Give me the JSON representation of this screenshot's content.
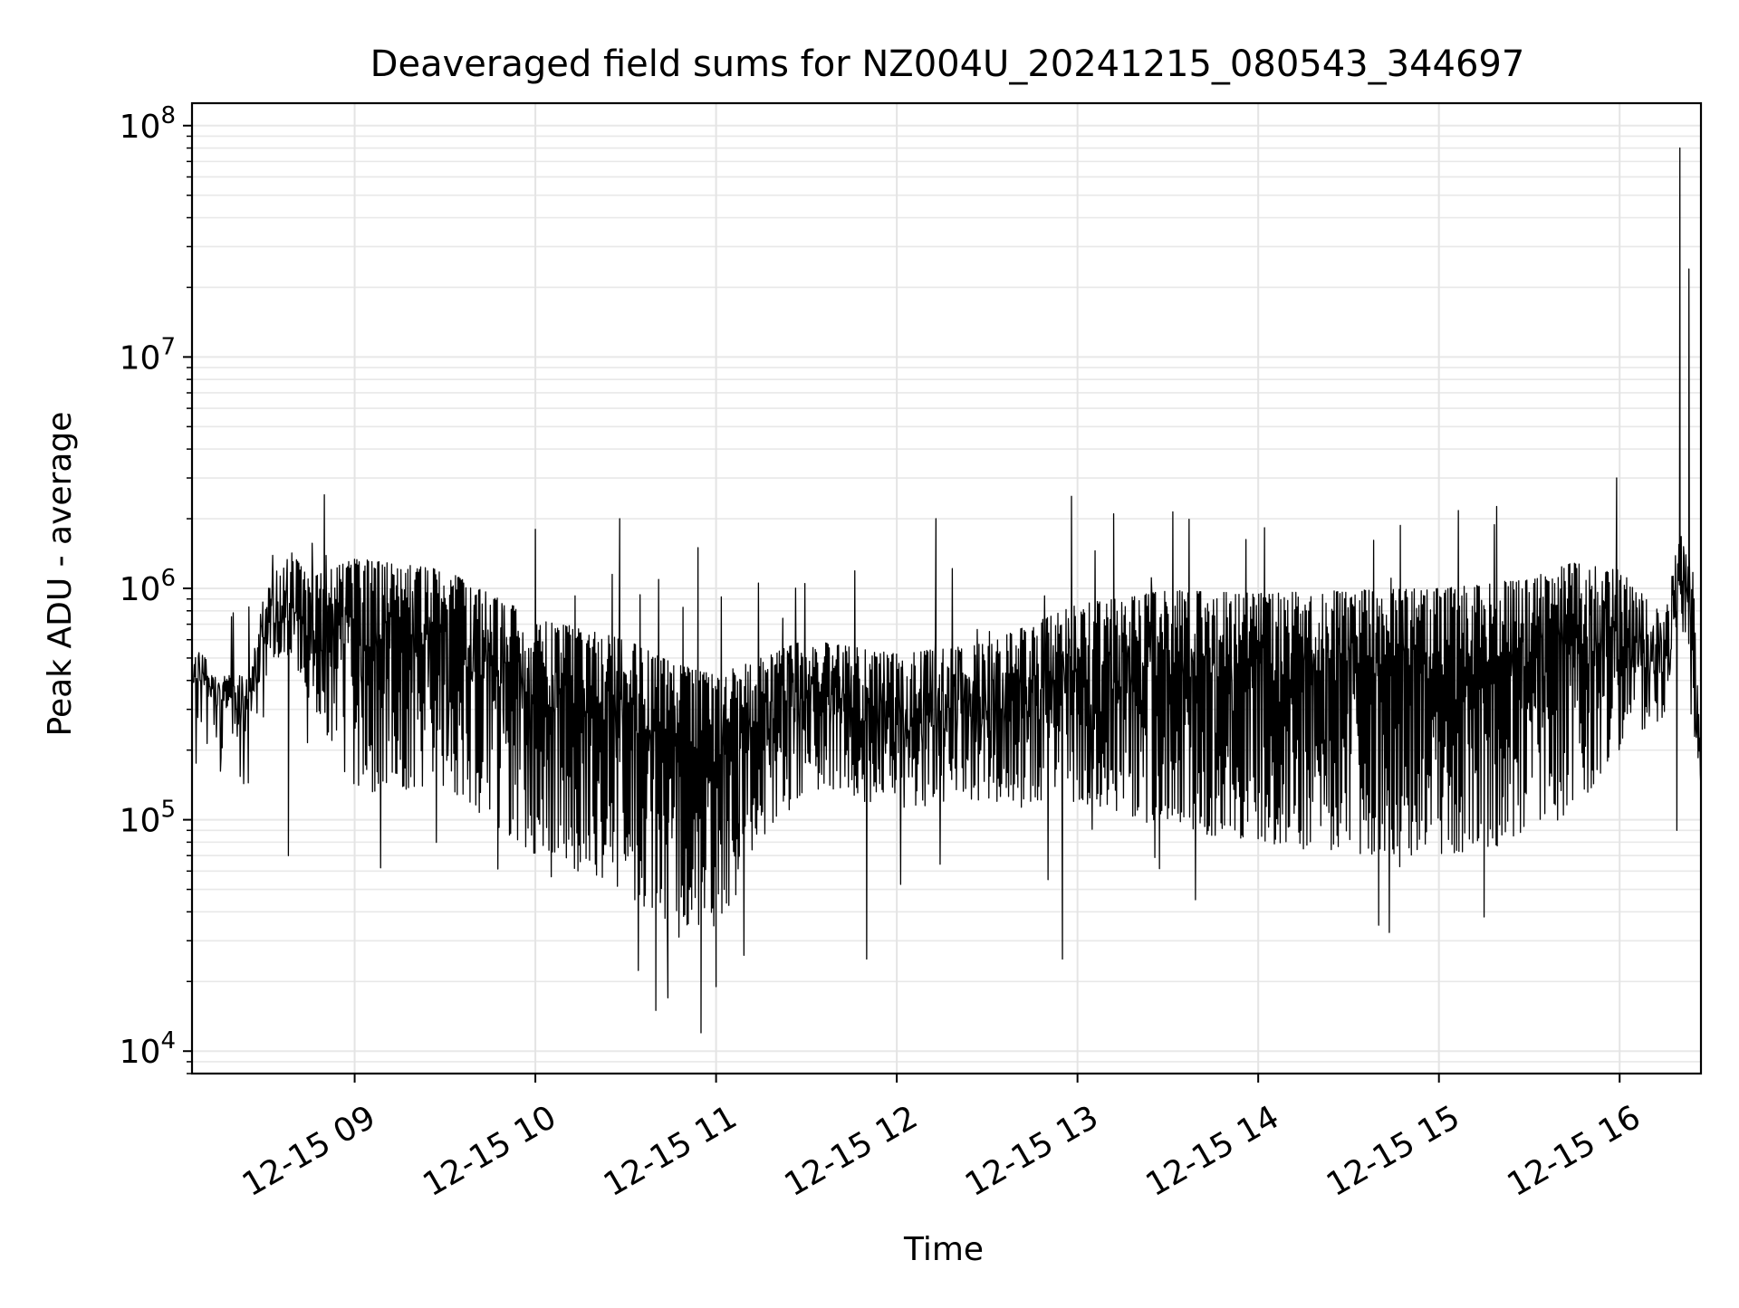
{
  "chart_data": {
    "type": "line",
    "title": "Deaveraged field sums for NZ004U_20241215_080543_344697",
    "xlabel": "Time",
    "ylabel": "Peak ADU - average",
    "y_scale": "log",
    "ylim": [
      8000,
      125000000
    ],
    "xlim": [
      "2024-12-15 08:06:00",
      "2024-12-15 16:27:00"
    ],
    "x_tick_labels": [
      "12-15 09",
      "12-15 10",
      "12-15 11",
      "12-15 12",
      "12-15 13",
      "12-15 14",
      "12-15 15",
      "12-15 16"
    ],
    "x_tick_values": [
      "2024-12-15 09:00",
      "2024-12-15 10:00",
      "2024-12-15 11:00",
      "2024-12-15 12:00",
      "2024-12-15 13:00",
      "2024-12-15 14:00",
      "2024-12-15 15:00",
      "2024-12-15 16:00"
    ],
    "y_tick_labels": [
      {
        "base": "10",
        "exp": "4",
        "value": 10000
      },
      {
        "base": "10",
        "exp": "5",
        "value": 100000
      },
      {
        "base": "10",
        "exp": "6",
        "value": 1000000
      },
      {
        "base": "10",
        "exp": "7",
        "value": 10000000
      },
      {
        "base": "10",
        "exp": "8",
        "value": 100000000
      }
    ],
    "grid": true,
    "line_color": "#000000",
    "series": [
      {
        "envelope": [
          {
            "t": "2024-12-15 08:06",
            "hi": 600000,
            "lo": 400000
          },
          {
            "t": "2024-12-15 08:15",
            "hi": 420000,
            "lo": 300000
          },
          {
            "t": "2024-12-15 08:25",
            "hi": 420000,
            "lo": 300000
          },
          {
            "t": "2024-12-15 08:30",
            "hi": 950000,
            "lo": 500000
          },
          {
            "t": "2024-12-15 08:38",
            "hi": 1500000,
            "lo": 500000
          },
          {
            "t": "2024-12-15 08:45",
            "hi": 1100000,
            "lo": 330000
          },
          {
            "t": "2024-12-15 09:00",
            "hi": 1350000,
            "lo": 130000
          },
          {
            "t": "2024-12-15 09:30",
            "hi": 1200000,
            "lo": 140000
          },
          {
            "t": "2024-12-15 10:00",
            "hi": 750000,
            "lo": 70000
          },
          {
            "t": "2024-12-15 10:30",
            "hi": 600000,
            "lo": 50000
          },
          {
            "t": "2024-12-15 10:45",
            "hi": 480000,
            "lo": 30000
          },
          {
            "t": "2024-12-15 11:00",
            "hi": 420000,
            "lo": 35000
          },
          {
            "t": "2024-12-15 11:30",
            "hi": 600000,
            "lo": 140000
          },
          {
            "t": "2024-12-15 12:00",
            "hi": 520000,
            "lo": 110000
          },
          {
            "t": "2024-12-15 12:30",
            "hi": 580000,
            "lo": 120000
          },
          {
            "t": "2024-12-15 13:00",
            "hi": 850000,
            "lo": 120000
          },
          {
            "t": "2024-12-15 13:30",
            "hi": 980000,
            "lo": 90000
          },
          {
            "t": "2024-12-15 14:00",
            "hi": 950000,
            "lo": 80000
          },
          {
            "t": "2024-12-15 14:30",
            "hi": 980000,
            "lo": 70000
          },
          {
            "t": "2024-12-15 15:00",
            "hi": 1000000,
            "lo": 70000
          },
          {
            "t": "2024-12-15 15:30",
            "hi": 1100000,
            "lo": 80000
          },
          {
            "t": "2024-12-15 15:45",
            "hi": 1300000,
            "lo": 110000
          },
          {
            "t": "2024-12-15 16:00",
            "hi": 1200000,
            "lo": 200000
          },
          {
            "t": "2024-12-15 16:15",
            "hi": 750000,
            "lo": 280000
          },
          {
            "t": "2024-12-15 16:20",
            "hi": 1800000,
            "lo": 900000
          },
          {
            "t": "2024-12-15 16:24",
            "hi": 1500000,
            "lo": 250000
          },
          {
            "t": "2024-12-15 16:27",
            "hi": 200000,
            "lo": 150000
          }
        ],
        "spikes": [
          {
            "t": "2024-12-15 10:00",
            "value": 1800000
          },
          {
            "t": "2024-12-15 10:28",
            "value": 2000000
          },
          {
            "t": "2024-12-15 10:54",
            "value": 1500000
          },
          {
            "t": "2024-12-15 12:13",
            "value": 2000000
          },
          {
            "t": "2024-12-15 12:58",
            "value": 2500000
          },
          {
            "t": "2024-12-15 13:12",
            "value": 2100000
          },
          {
            "t": "2024-12-15 15:59",
            "value": 3000000
          },
          {
            "t": "2024-12-15 16:20",
            "value": 80000000
          },
          {
            "t": "2024-12-15 16:23",
            "value": 24000000
          }
        ],
        "dips": [
          {
            "t": "2024-12-15 08:38",
            "value": 70000
          },
          {
            "t": "2024-12-15 10:40",
            "value": 15000
          },
          {
            "t": "2024-12-15 10:44",
            "value": 17000
          },
          {
            "t": "2024-12-15 10:55",
            "value": 12000
          },
          {
            "t": "2024-12-15 11:00",
            "value": 19000
          },
          {
            "t": "2024-12-15 11:50",
            "value": 25000
          },
          {
            "t": "2024-12-15 12:55",
            "value": 25000
          },
          {
            "t": "2024-12-15 14:40",
            "value": 35000
          },
          {
            "t": "2024-12-15 15:15",
            "value": 38000
          },
          {
            "t": "2024-12-15 16:19",
            "value": 90000
          }
        ]
      }
    ]
  }
}
